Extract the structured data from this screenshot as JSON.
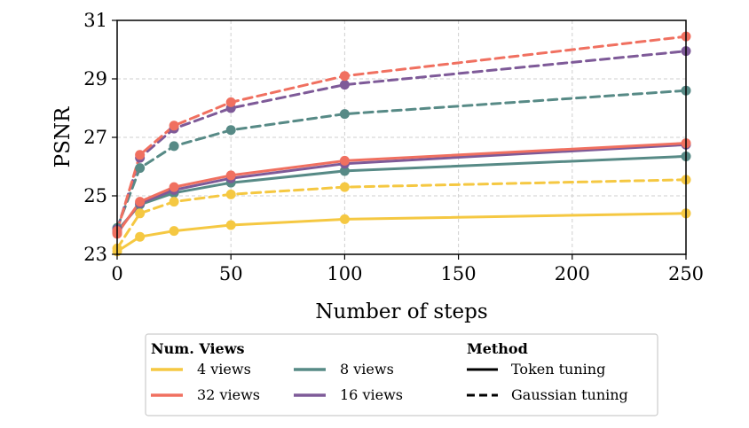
{
  "chart_data": {
    "type": "line",
    "xlabel": "Number of steps",
    "ylabel": "PSNR",
    "xlim": [
      0,
      250
    ],
    "ylim": [
      23,
      31
    ],
    "xticks": [
      0,
      50,
      100,
      150,
      200,
      250
    ],
    "yticks": [
      23,
      25,
      27,
      29,
      31
    ],
    "grid": true,
    "x": [
      0,
      10,
      25,
      50,
      100,
      250
    ],
    "legend": {
      "placement": "bottom",
      "views_title": "Num. Views",
      "method_title": "Method",
      "method_entries": [
        {
          "label": "Token tuning",
          "style": "solid"
        },
        {
          "label": "Gaussian tuning",
          "style": "dashed"
        }
      ]
    },
    "groups": [
      {
        "views_label": "4 views",
        "color": "#f5c842",
        "token": [
          23.1,
          23.6,
          23.8,
          24.0,
          24.2,
          24.4
        ],
        "gaussian": [
          23.2,
          24.4,
          24.8,
          25.05,
          25.3,
          25.55
        ]
      },
      {
        "views_label": "32 views",
        "color": "#f07060",
        "token": [
          23.7,
          24.8,
          25.3,
          25.7,
          26.2,
          26.8
        ],
        "gaussian": [
          23.8,
          26.4,
          27.4,
          28.2,
          29.1,
          30.45
        ]
      },
      {
        "views_label": "8 views",
        "color": "#578a86",
        "token": [
          23.8,
          24.7,
          25.1,
          25.45,
          25.85,
          26.35
        ],
        "gaussian": [
          23.9,
          25.95,
          26.7,
          27.25,
          27.8,
          28.6
        ]
      },
      {
        "views_label": "16 views",
        "color": "#7e5a98",
        "token": [
          23.75,
          24.75,
          25.2,
          25.6,
          26.1,
          26.75
        ],
        "gaussian": [
          23.85,
          26.3,
          27.3,
          28.0,
          28.8,
          29.95
        ]
      }
    ]
  }
}
